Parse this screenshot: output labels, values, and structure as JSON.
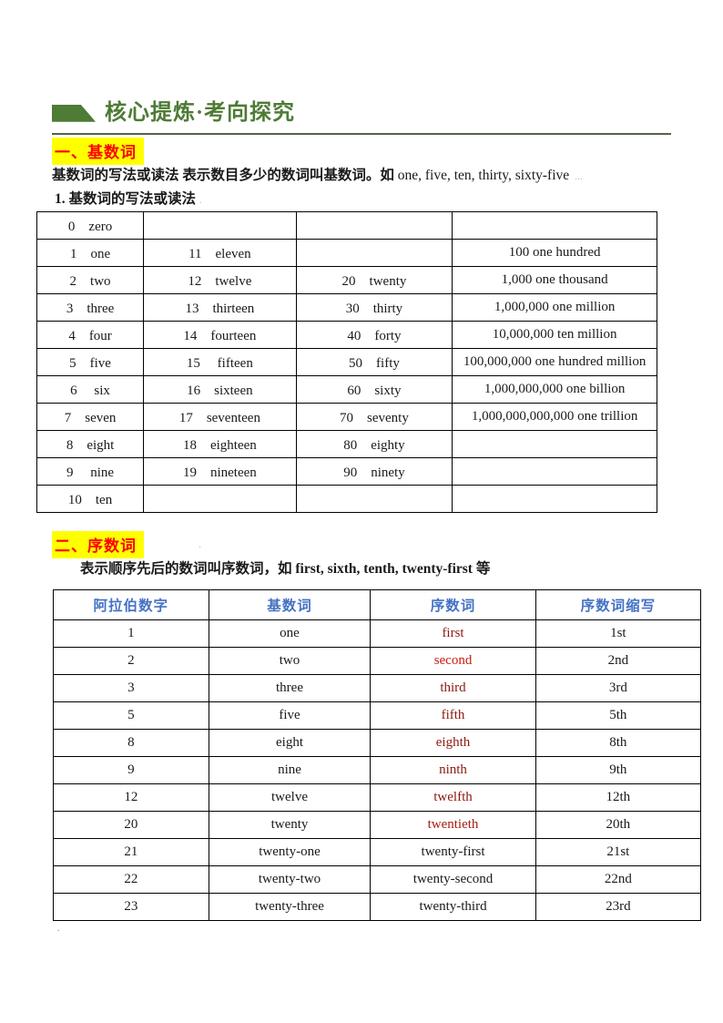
{
  "header": {
    "title": "核心提炼·考向探究"
  },
  "section1": {
    "heading": "一、基数词",
    "intro_zh": "基数词的写法或读法 表示数目多少的数词叫基数词。如 ",
    "intro_en": "one, five, ten, thirty, sixty-five",
    "intro_tail": " ...",
    "subheading": "1. 基数词的写法或读法",
    "subheading_tail": "."
  },
  "table1": {
    "rows": [
      [
        "0　zero",
        "",
        "",
        ""
      ],
      [
        "1　one",
        "11　eleven",
        "",
        "100 one hundred"
      ],
      [
        "2　two",
        "12　twelve",
        "20　twenty",
        "1,000 one thousand"
      ],
      [
        "3　three",
        "13　thirteen",
        "30　thirty",
        "1,000,000 one million"
      ],
      [
        "4　four",
        "14　fourteen",
        "40　forty",
        "10,000,000 ten million"
      ],
      [
        "5　five",
        "15　 fifteen",
        "50　fifty",
        "100,000,000 one hundred million"
      ],
      [
        "6　 six",
        "16　sixteen",
        "60　sixty",
        "1,000,000,000 one billion"
      ],
      [
        "7　seven",
        "17　seventeen",
        "70　seventy",
        "1,000,000,000,000 one trillion"
      ],
      [
        "8　eight",
        "18　eighteen",
        "80　eighty",
        ""
      ],
      [
        "9　 nine",
        "19　nineteen",
        "90　ninety",
        ""
      ],
      [
        "10　ten",
        "",
        "",
        ""
      ]
    ]
  },
  "section2": {
    "heading": "二、序数词",
    "heading_tail": ".",
    "intro_zh": "表示顺序先后的数词叫序数词，如 ",
    "intro_en": "first, sixth, tenth, twenty-first",
    "intro_zh2": " 等"
  },
  "table2": {
    "headers": [
      "阿拉伯数字",
      "基数词",
      "序数词",
      "序数词缩写"
    ],
    "rows": [
      [
        "1",
        "one",
        {
          "text": "first",
          "color": "#8b1a10"
        },
        "1st"
      ],
      [
        "2",
        "two",
        {
          "text": "second",
          "color": "#cb1b0e"
        },
        "2nd"
      ],
      [
        "3",
        "three",
        {
          "text": "third",
          "color": "#8b1a10"
        },
        "3rd"
      ],
      [
        "5",
        "five",
        {
          "text": "fifth",
          "color": "#8b1a10"
        },
        "5th"
      ],
      [
        "8",
        "eight",
        {
          "text": "eighth",
          "color": "#8b1a10"
        },
        "8th"
      ],
      [
        "9",
        "nine",
        {
          "text": "ninth",
          "color": "#8b1a10"
        },
        "9th"
      ],
      [
        "12",
        "twelve",
        {
          "text": "twelfth",
          "color": "#8b1a10"
        },
        "12th"
      ],
      [
        "20",
        "twenty",
        {
          "text": "twentieth",
          "color": "#a81d0f"
        },
        "20th"
      ],
      [
        "21",
        "twenty-one",
        "twenty-first",
        "21st"
      ],
      [
        "22",
        "twenty-two",
        "twenty-second",
        "22nd"
      ],
      [
        "23",
        "twenty-three",
        "twenty-third",
        "23rd"
      ]
    ]
  },
  "footer": {
    "mark": "."
  },
  "colors": {
    "heading_green": "#4e7b35",
    "highlight_yellow": "#ffff00",
    "section_red": "#ff0000",
    "table2_header_blue": "#4472c4",
    "ordinal_dark_red": "#8b1a10"
  }
}
